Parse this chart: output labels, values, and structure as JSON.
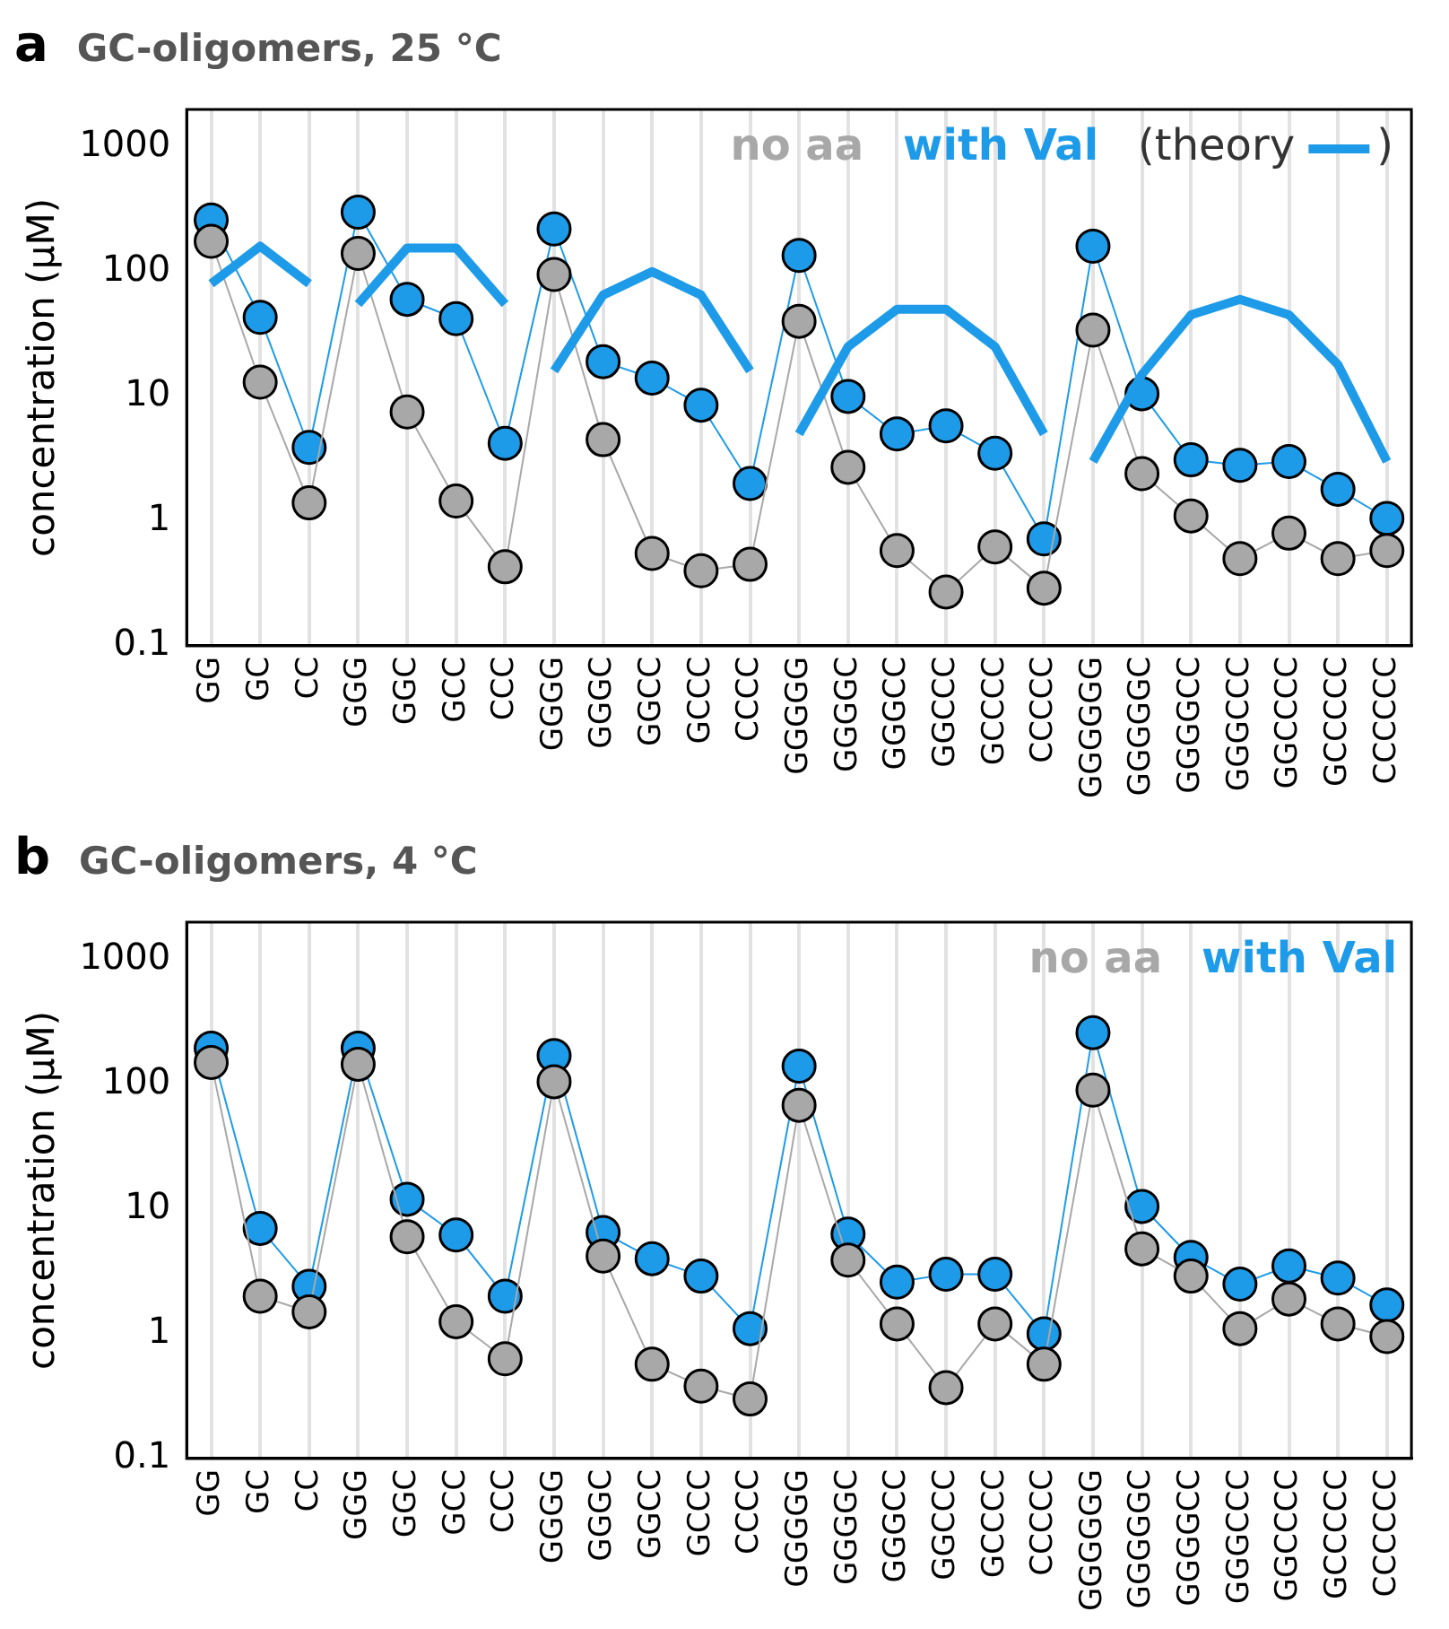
{
  "chart_data": [
    {
      "type": "line",
      "title": "GC-oligomers, 25 °C",
      "annotations": [
        "a",
        ")"
      ],
      "ylabel": "concentration (µM)",
      "log": "y",
      "grid": "x",
      "legend": "top right",
      "marker": "circle",
      "ylim": [
        0.1,
        2000
      ],
      "yticks": [
        0.1,
        1,
        10,
        100,
        1000
      ],
      "categories": [
        "GG",
        "GC",
        "CC",
        "GGG",
        "GGC",
        "GCC",
        "CCC",
        "GGGG",
        "GGGC",
        "GGCC",
        "GCCC",
        "CCCC",
        "GGGGG",
        "GGGGC",
        "GGGCC",
        "GGCCC",
        "GCCCC",
        "CCCCC",
        "GGGGGG",
        "GGGGGC",
        "GGGGCC",
        "GGGCCC",
        "GGCCCC",
        "GCCCCC",
        "CCCCCC"
      ],
      "series": [
        {
          "name": "no aa",
          "color": "#a8a8a8",
          "values": [
            175,
            13,
            1.4,
            140,
            7.5,
            1.45,
            0.43,
            95,
            4.5,
            0.55,
            0.4,
            0.45,
            40,
            2.7,
            0.58,
            0.27,
            0.62,
            0.29,
            34,
            2.4,
            1.1,
            0.5,
            0.8,
            0.5,
            0.58
          ]
        },
        {
          "name": "with Val",
          "color": "#1e9be8",
          "values": [
            260,
            43,
            3.9,
            300,
            60,
            42,
            4.2,
            220,
            19,
            14,
            8.5,
            2.0,
            135,
            10,
            5,
            5.8,
            3.5,
            0.72,
            160,
            10.5,
            3.1,
            2.8,
            3.0,
            1.8,
            1.05
          ]
        },
        {
          "name": "(theory",
          "type": "line",
          "marker": "none",
          "color": "#1e9be8",
          "values": [
            80,
            160,
            80,
            null,
            null,
            null,
            null,
            null,
            null,
            null,
            null,
            null,
            null,
            null,
            null,
            null,
            null,
            null,
            null,
            null,
            null,
            null,
            null,
            null,
            null
          ]
        },
        {
          "type": "line",
          "marker": "none",
          "color": "#1e9be8",
          "values": [
            null,
            null,
            null,
            55,
            155,
            155,
            55,
            null,
            null,
            null,
            null,
            null,
            null,
            null,
            null,
            null,
            null,
            null,
            null,
            null,
            null,
            null,
            null,
            null,
            null
          ]
        },
        {
          "type": "line",
          "marker": "none",
          "color": "#1e9be8",
          "values": [
            null,
            null,
            null,
            null,
            null,
            null,
            null,
            16,
            65,
            100,
            65,
            16,
            null,
            null,
            null,
            null,
            null,
            null,
            null,
            null,
            null,
            null,
            null,
            null,
            null
          ]
        },
        {
          "type": "line",
          "marker": "none",
          "color": "#1e9be8",
          "values": [
            null,
            null,
            null,
            null,
            null,
            null,
            null,
            null,
            null,
            null,
            null,
            null,
            5,
            25,
            50,
            50,
            25,
            5,
            null,
            null,
            null,
            null,
            null,
            null,
            null
          ]
        },
        {
          "type": "line",
          "marker": "none",
          "color": "#1e9be8",
          "values": [
            null,
            null,
            null,
            null,
            null,
            null,
            null,
            null,
            null,
            null,
            null,
            null,
            null,
            null,
            null,
            null,
            null,
            null,
            3,
            15,
            45,
            60,
            45,
            18,
            3
          ]
        }
      ]
    },
    {
      "type": "line",
      "title": "GC-oligomers, 4 °C",
      "annotations": [
        "b"
      ],
      "ylabel": "concentration (µM)",
      "log": "y",
      "grid": "x",
      "legend": "top right",
      "marker": "circle",
      "ylim": [
        0.1,
        2000
      ],
      "yticks": [
        0.1,
        1,
        10,
        100,
        1000
      ],
      "categories": [
        "GG",
        "GC",
        "CC",
        "GGG",
        "GGC",
        "GCC",
        "CCC",
        "GGGG",
        "GGGC",
        "GGCC",
        "GCCC",
        "CCCC",
        "GGGGG",
        "GGGGC",
        "GGGCC",
        "GGCCC",
        "GCCCC",
        "CCCCC",
        "GGGGGG",
        "GGGGGC",
        "GGGGCC",
        "GGGCCC",
        "GGCCCC",
        "GCCCCC",
        "CCCCCC"
      ],
      "series": [
        {
          "name": "no aa",
          "color": "#a8a8a8",
          "values": [
            150,
            2.0,
            1.5,
            145,
            6,
            1.25,
            0.63,
            105,
            4.2,
            0.57,
            0.38,
            0.3,
            68,
            3.9,
            1.2,
            0.37,
            1.2,
            0.57,
            90,
            4.8,
            2.9,
            1.1,
            1.9,
            1.2,
            0.95
          ]
        },
        {
          "name": "with Val",
          "color": "#1e9be8",
          "values": [
            195,
            7,
            2.4,
            195,
            12,
            6.2,
            2.0,
            170,
            6.5,
            4.0,
            2.9,
            1.1,
            140,
            6.3,
            2.6,
            3.0,
            3.0,
            1.0,
            260,
            10.5,
            4.1,
            2.5,
            3.5,
            2.8,
            1.7
          ]
        }
      ]
    }
  ]
}
